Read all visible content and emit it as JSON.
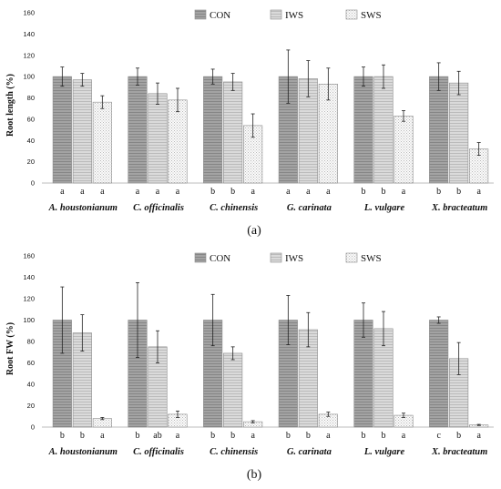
{
  "chart_data": [
    {
      "type": "bar",
      "panel_label": "(a)",
      "ylabel": "Root length (%)",
      "ylim": [
        0,
        160
      ],
      "yticks": [
        0,
        20,
        40,
        60,
        80,
        100,
        120,
        140,
        160
      ],
      "categories": [
        "A. houstonianum",
        "C. officinalis",
        "C. chinensis",
        "G. carinata",
        "L. vulgare",
        "X. bracteatum"
      ],
      "legend": {
        "placement": "top-center"
      },
      "grid": false,
      "series": [
        {
          "name": "CON",
          "values": [
            100,
            100,
            100,
            100,
            100,
            100
          ],
          "errors": [
            9,
            8,
            7,
            25,
            9,
            13
          ],
          "letters": [
            "a",
            "a",
            "b",
            "a",
            "b",
            "b"
          ],
          "color": "#9a9a9a"
        },
        {
          "name": "IWS",
          "values": [
            97,
            84,
            95,
            98,
            100,
            94
          ],
          "errors": [
            6,
            10,
            8,
            17,
            11,
            11
          ],
          "letters": [
            "a",
            "a",
            "b",
            "a",
            "b",
            "b"
          ],
          "color": "#d2d2d2"
        },
        {
          "name": "SWS",
          "values": [
            76,
            78,
            54,
            93,
            63,
            32
          ],
          "errors": [
            6,
            11,
            11,
            15,
            5,
            6
          ],
          "letters": [
            "a",
            "a",
            "a",
            "a",
            "a",
            "a"
          ],
          "color": "#f4f4f4"
        }
      ]
    },
    {
      "type": "bar",
      "panel_label": "(b)",
      "ylabel": "Root FW (%)",
      "ylim": [
        0,
        160
      ],
      "yticks": [
        0,
        20,
        40,
        60,
        80,
        100,
        120,
        140,
        160
      ],
      "categories": [
        "A. houstonianum",
        "C. officinalis",
        "C. chinensis",
        "G. carinata",
        "L. vulgare",
        "X. bracteatum"
      ],
      "legend": {
        "placement": "top-center"
      },
      "grid": false,
      "series": [
        {
          "name": "CON",
          "values": [
            100,
            100,
            100,
            100,
            100,
            100
          ],
          "errors": [
            31,
            35,
            24,
            23,
            16,
            3
          ],
          "letters": [
            "b",
            "b",
            "b",
            "b",
            "b",
            "c"
          ],
          "color": "#9a9a9a"
        },
        {
          "name": "IWS",
          "values": [
            88,
            75,
            69,
            91,
            92,
            64
          ],
          "errors": [
            17,
            15,
            6,
            16,
            16,
            15
          ],
          "letters": [
            "b",
            "ab",
            "b",
            "b",
            "b",
            "b"
          ],
          "color": "#d2d2d2"
        },
        {
          "name": "SWS",
          "values": [
            8,
            12,
            5,
            12,
            11,
            2
          ],
          "errors": [
            1,
            3,
            1,
            2,
            2,
            0.5
          ],
          "letters": [
            "a",
            "a",
            "a",
            "a",
            "a",
            "a"
          ],
          "color": "#f4f4f4"
        }
      ]
    }
  ]
}
